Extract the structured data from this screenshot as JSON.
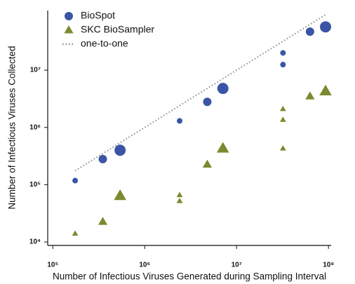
{
  "chart_data": {
    "type": "scatter",
    "x_label": "Number of Infectious Viruses Generated during Sampling Interval",
    "y_label": "Number of Infectious Viruses Collected",
    "xscale": "log",
    "yscale": "log",
    "xlim": [
      88000,
      107000000
    ],
    "ylim": [
      8700,
      110000000
    ],
    "xticks": [
      {
        "value": 100000,
        "label": "10⁵"
      },
      {
        "value": 1000000,
        "label": "10⁶"
      },
      {
        "value": 10000000,
        "label": "10⁷"
      },
      {
        "value": 100000000,
        "label": "10⁸"
      }
    ],
    "yticks": [
      {
        "value": 10000,
        "label": "10⁴"
      },
      {
        "value": 100000,
        "label": "10⁵"
      },
      {
        "value": 1000000,
        "label": "10⁶"
      },
      {
        "value": 10000000,
        "label": "10⁷"
      }
    ],
    "legend": "upper left",
    "series": [
      {
        "name": "BioSpot",
        "color": "#3b55a6",
        "marker": "circle",
        "x": [
          175000,
          350000,
          540000,
          2400000,
          4800000,
          7100000,
          32000000,
          32000000,
          63000000,
          93000000
        ],
        "values": [
          118000,
          280000,
          400000,
          1300000,
          2800000,
          4800000,
          20000000,
          12500000,
          47000000,
          57000000
        ],
        "sizes": [
          50,
          113,
          200,
          50,
          113,
          200,
          50,
          50,
          113,
          200
        ]
      },
      {
        "name": "SKC BioSampler",
        "color": "#7b8a2e",
        "marker": "triangle",
        "x": [
          175000,
          350000,
          540000,
          2400000,
          2400000,
          4800000,
          7100000,
          32000000,
          32000000,
          32000000,
          63000000,
          93000000
        ],
        "values": [
          14000,
          22600,
          64000,
          66000,
          52000,
          226000,
          430000,
          430000,
          1360000,
          2100000,
          3500000,
          4300000
        ],
        "sizes": [
          50,
          113,
          200,
          50,
          50,
          113,
          200,
          50,
          50,
          50,
          113,
          200
        ]
      },
      {
        "name": "one-to-one",
        "color": "#8a8a8a",
        "marker": "dotted-line",
        "x": [
          175000,
          93000000
        ],
        "values": [
          175000,
          93000000
        ]
      }
    ]
  }
}
